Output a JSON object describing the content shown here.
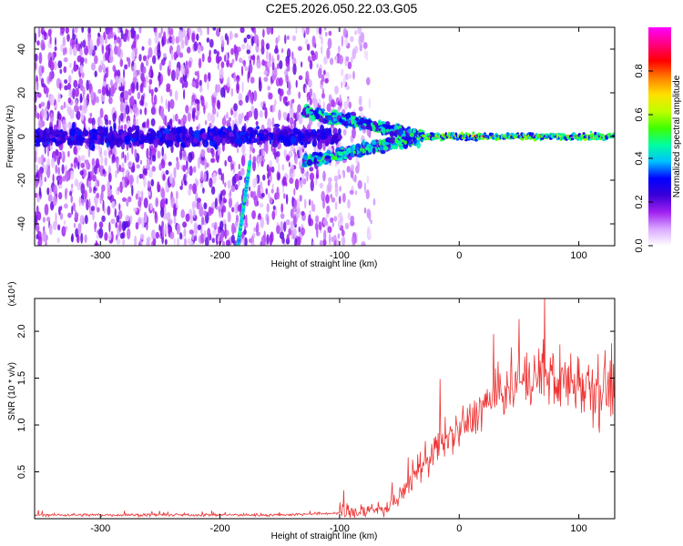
{
  "title": "C2E5.2026.050.22.03.G05",
  "chart_data": [
    {
      "type": "heatmap",
      "xlabel": "Height of straight line (km)",
      "ylabel": "Frequency (Hz)",
      "xlim": [
        -355,
        130
      ],
      "ylim": [
        -50,
        50
      ],
      "xticks": [
        -300,
        -200,
        -100,
        0,
        100
      ],
      "yticks": [
        -40,
        -20,
        0,
        20,
        40
      ],
      "colorbar": {
        "label": "Normalized spectral amplitude",
        "range": [
          0,
          1
        ],
        "ticks": [
          "0.0",
          "0.2",
          "0.4",
          "0.6",
          "0.8"
        ],
        "colors": [
          "#ffffff",
          "#d9a8ff",
          "#a020f0",
          "#3a00d8",
          "#0000ff",
          "#00c0ff",
          "#00ffa0",
          "#40ff00",
          "#c0ff00",
          "#ffe000",
          "#ff8000",
          "#ff0000",
          "#ff0080",
          "#ff00ff"
        ]
      },
      "features": [
        {
          "name": "broadband noise",
          "x_range": [
            -355,
            -100
          ],
          "f_range": [
            -50,
            50
          ],
          "amplitude": 0.15
        },
        {
          "name": "dispersed noise band",
          "x_range": [
            -100,
            -30
          ],
          "f_range": [
            -10,
            15
          ],
          "amplitude": 0.35
        },
        {
          "name": "carrier line",
          "x_range": [
            -35,
            130
          ],
          "f_center": 0,
          "amplitude": 0.9
        },
        {
          "name": "oblique streak",
          "x_range": [
            -185,
            -175
          ],
          "f_range": [
            -50,
            -12
          ],
          "amplitude": 0.35
        }
      ]
    },
    {
      "type": "line",
      "xlabel": "Height of straight line (km)",
      "ylabel": "SNR (10 * v/v)",
      "yscale_note": "(x10⁴)",
      "xlim": [
        -355,
        130
      ],
      "ylim": [
        0,
        2.35
      ],
      "xticks": [
        -300,
        -200,
        -100,
        0,
        100
      ],
      "yticks": [
        "0.5",
        "1.0",
        "1.5",
        "2.0"
      ],
      "series": [
        {
          "color": "#ee3333",
          "x": [
            -355,
            -300,
            -200,
            -150,
            -100,
            -80,
            -60,
            -50,
            -40,
            -30,
            -20,
            -10,
            0,
            10,
            20,
            30,
            40,
            50,
            60,
            70,
            80,
            90,
            100,
            110,
            120,
            130
          ],
          "y": [
            0.04,
            0.04,
            0.04,
            0.04,
            0.06,
            0.08,
            0.12,
            0.22,
            0.42,
            0.6,
            0.75,
            0.85,
            0.95,
            1.05,
            1.2,
            1.3,
            1.38,
            1.45,
            1.5,
            1.55,
            1.5,
            1.45,
            1.5,
            1.45,
            1.4,
            1.45
          ]
        }
      ]
    }
  ]
}
